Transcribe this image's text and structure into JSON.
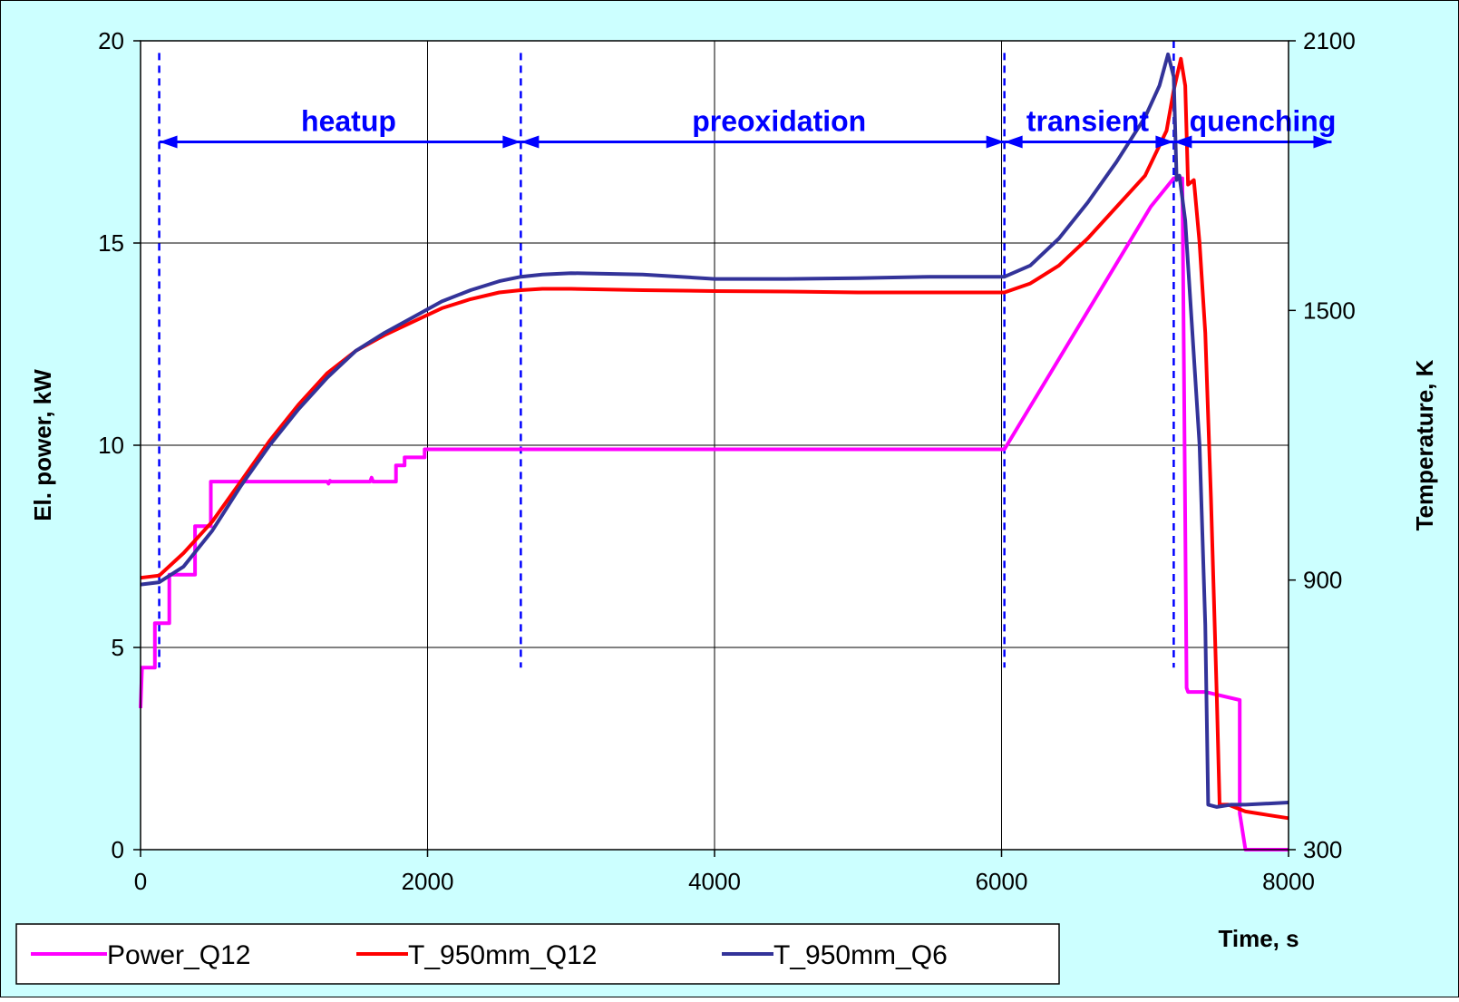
{
  "chart_data": {
    "type": "line",
    "colors": {
      "background": "#ccffff",
      "plot_background": "#ffffff",
      "annotation": "#0000ff",
      "grid": "#000000"
    },
    "x_axis": {
      "label": "Time, s",
      "range": [
        0,
        8000
      ],
      "ticks": [
        0,
        2000,
        4000,
        6000,
        8000
      ],
      "tick_labels": [
        "0",
        "2000",
        "4000",
        "6000",
        "8000"
      ]
    },
    "y_left": {
      "label": "El. power, kW",
      "range": [
        0,
        20
      ],
      "ticks": [
        0,
        5,
        10,
        15,
        20
      ],
      "tick_labels": [
        "0",
        "5",
        "10",
        "15",
        "20"
      ]
    },
    "y_right": {
      "label": "Temperature, K",
      "range": [
        300,
        2100
      ],
      "ticks": [
        300,
        900,
        1500,
        2100
      ],
      "tick_labels": [
        "300",
        "900",
        "1500",
        "2100"
      ]
    },
    "grid": true,
    "legend_position": "bottom",
    "phases": {
      "boundaries": [
        130,
        2650,
        6020,
        7200
      ],
      "labels": [
        {
          "text": "heatup",
          "x": 1450
        },
        {
          "text": "preoxidation",
          "x": 4450
        },
        {
          "text": "transient",
          "x": 6600
        },
        {
          "text": "quenching",
          "x": 7820
        }
      ],
      "arrow_y_kw": 17.5
    },
    "series": [
      {
        "name": "Power_Q12",
        "axis": "left",
        "color": "#ff00ff",
        "x": [
          0,
          10,
          20,
          30,
          100,
          100,
          200,
          200,
          380,
          380,
          490,
          490,
          1300,
          1310,
          1320,
          1330,
          1600,
          1610,
          1620,
          1630,
          1780,
          1780,
          1840,
          1840,
          1980,
          1980,
          6020,
          7040,
          7200,
          7260,
          7290,
          7300,
          7420,
          7660,
          7660,
          7700,
          8000
        ],
        "values": [
          3.5,
          4.5,
          4.5,
          4.5,
          4.5,
          5.6,
          5.6,
          6.8,
          6.8,
          8.0,
          8.0,
          9.1,
          9.1,
          9.05,
          9.12,
          9.1,
          9.1,
          9.2,
          9.1,
          9.1,
          9.1,
          9.5,
          9.5,
          9.7,
          9.7,
          9.9,
          9.9,
          15.9,
          16.6,
          16.6,
          4.0,
          3.9,
          3.9,
          3.7,
          0.9,
          0.0,
          0.0
        ]
      },
      {
        "name": "T_950mm_Q12",
        "axis": "right",
        "color": "#ff0000",
        "x": [
          0,
          130,
          300,
          500,
          700,
          900,
          1100,
          1300,
          1500,
          1700,
          1900,
          2100,
          2300,
          2500,
          2650,
          2800,
          3000,
          3500,
          4000,
          4500,
          5000,
          5500,
          6020,
          6200,
          6400,
          6600,
          6800,
          7000,
          7150,
          7200,
          7250,
          7280,
          7300,
          7340,
          7380,
          7420,
          7460,
          7500,
          7520,
          7580,
          7700,
          7800,
          8000
        ],
        "values": [
          905,
          910,
          960,
          1030,
          1120,
          1210,
          1290,
          1360,
          1410,
          1445,
          1475,
          1505,
          1525,
          1540,
          1545,
          1548,
          1548,
          1545,
          1543,
          1542,
          1540,
          1540,
          1540,
          1560,
          1600,
          1660,
          1730,
          1800,
          1900,
          1990,
          2060,
          2000,
          1780,
          1790,
          1650,
          1450,
          1080,
          640,
          400,
          400,
          385,
          380,
          370
        ]
      },
      {
        "name": "T_950mm_Q6",
        "axis": "right",
        "color": "#333399",
        "x": [
          0,
          130,
          300,
          500,
          700,
          900,
          1100,
          1300,
          1500,
          1700,
          1900,
          2100,
          2300,
          2500,
          2650,
          2800,
          3000,
          3500,
          4000,
          4500,
          5000,
          5500,
          6020,
          6200,
          6400,
          6600,
          6800,
          7000,
          7100,
          7160,
          7200,
          7220,
          7240,
          7280,
          7320,
          7380,
          7420,
          7440,
          7500,
          7600,
          7700,
          8000
        ],
        "values": [
          890,
          895,
          930,
          1010,
          1110,
          1200,
          1280,
          1350,
          1410,
          1450,
          1485,
          1520,
          1545,
          1565,
          1575,
          1580,
          1583,
          1580,
          1570,
          1570,
          1572,
          1575,
          1575,
          1600,
          1660,
          1740,
          1830,
          1930,
          2000,
          2070,
          2020,
          1790,
          1800,
          1700,
          1500,
          1200,
          800,
          400,
          395,
          400,
          400,
          405
        ]
      }
    ]
  }
}
